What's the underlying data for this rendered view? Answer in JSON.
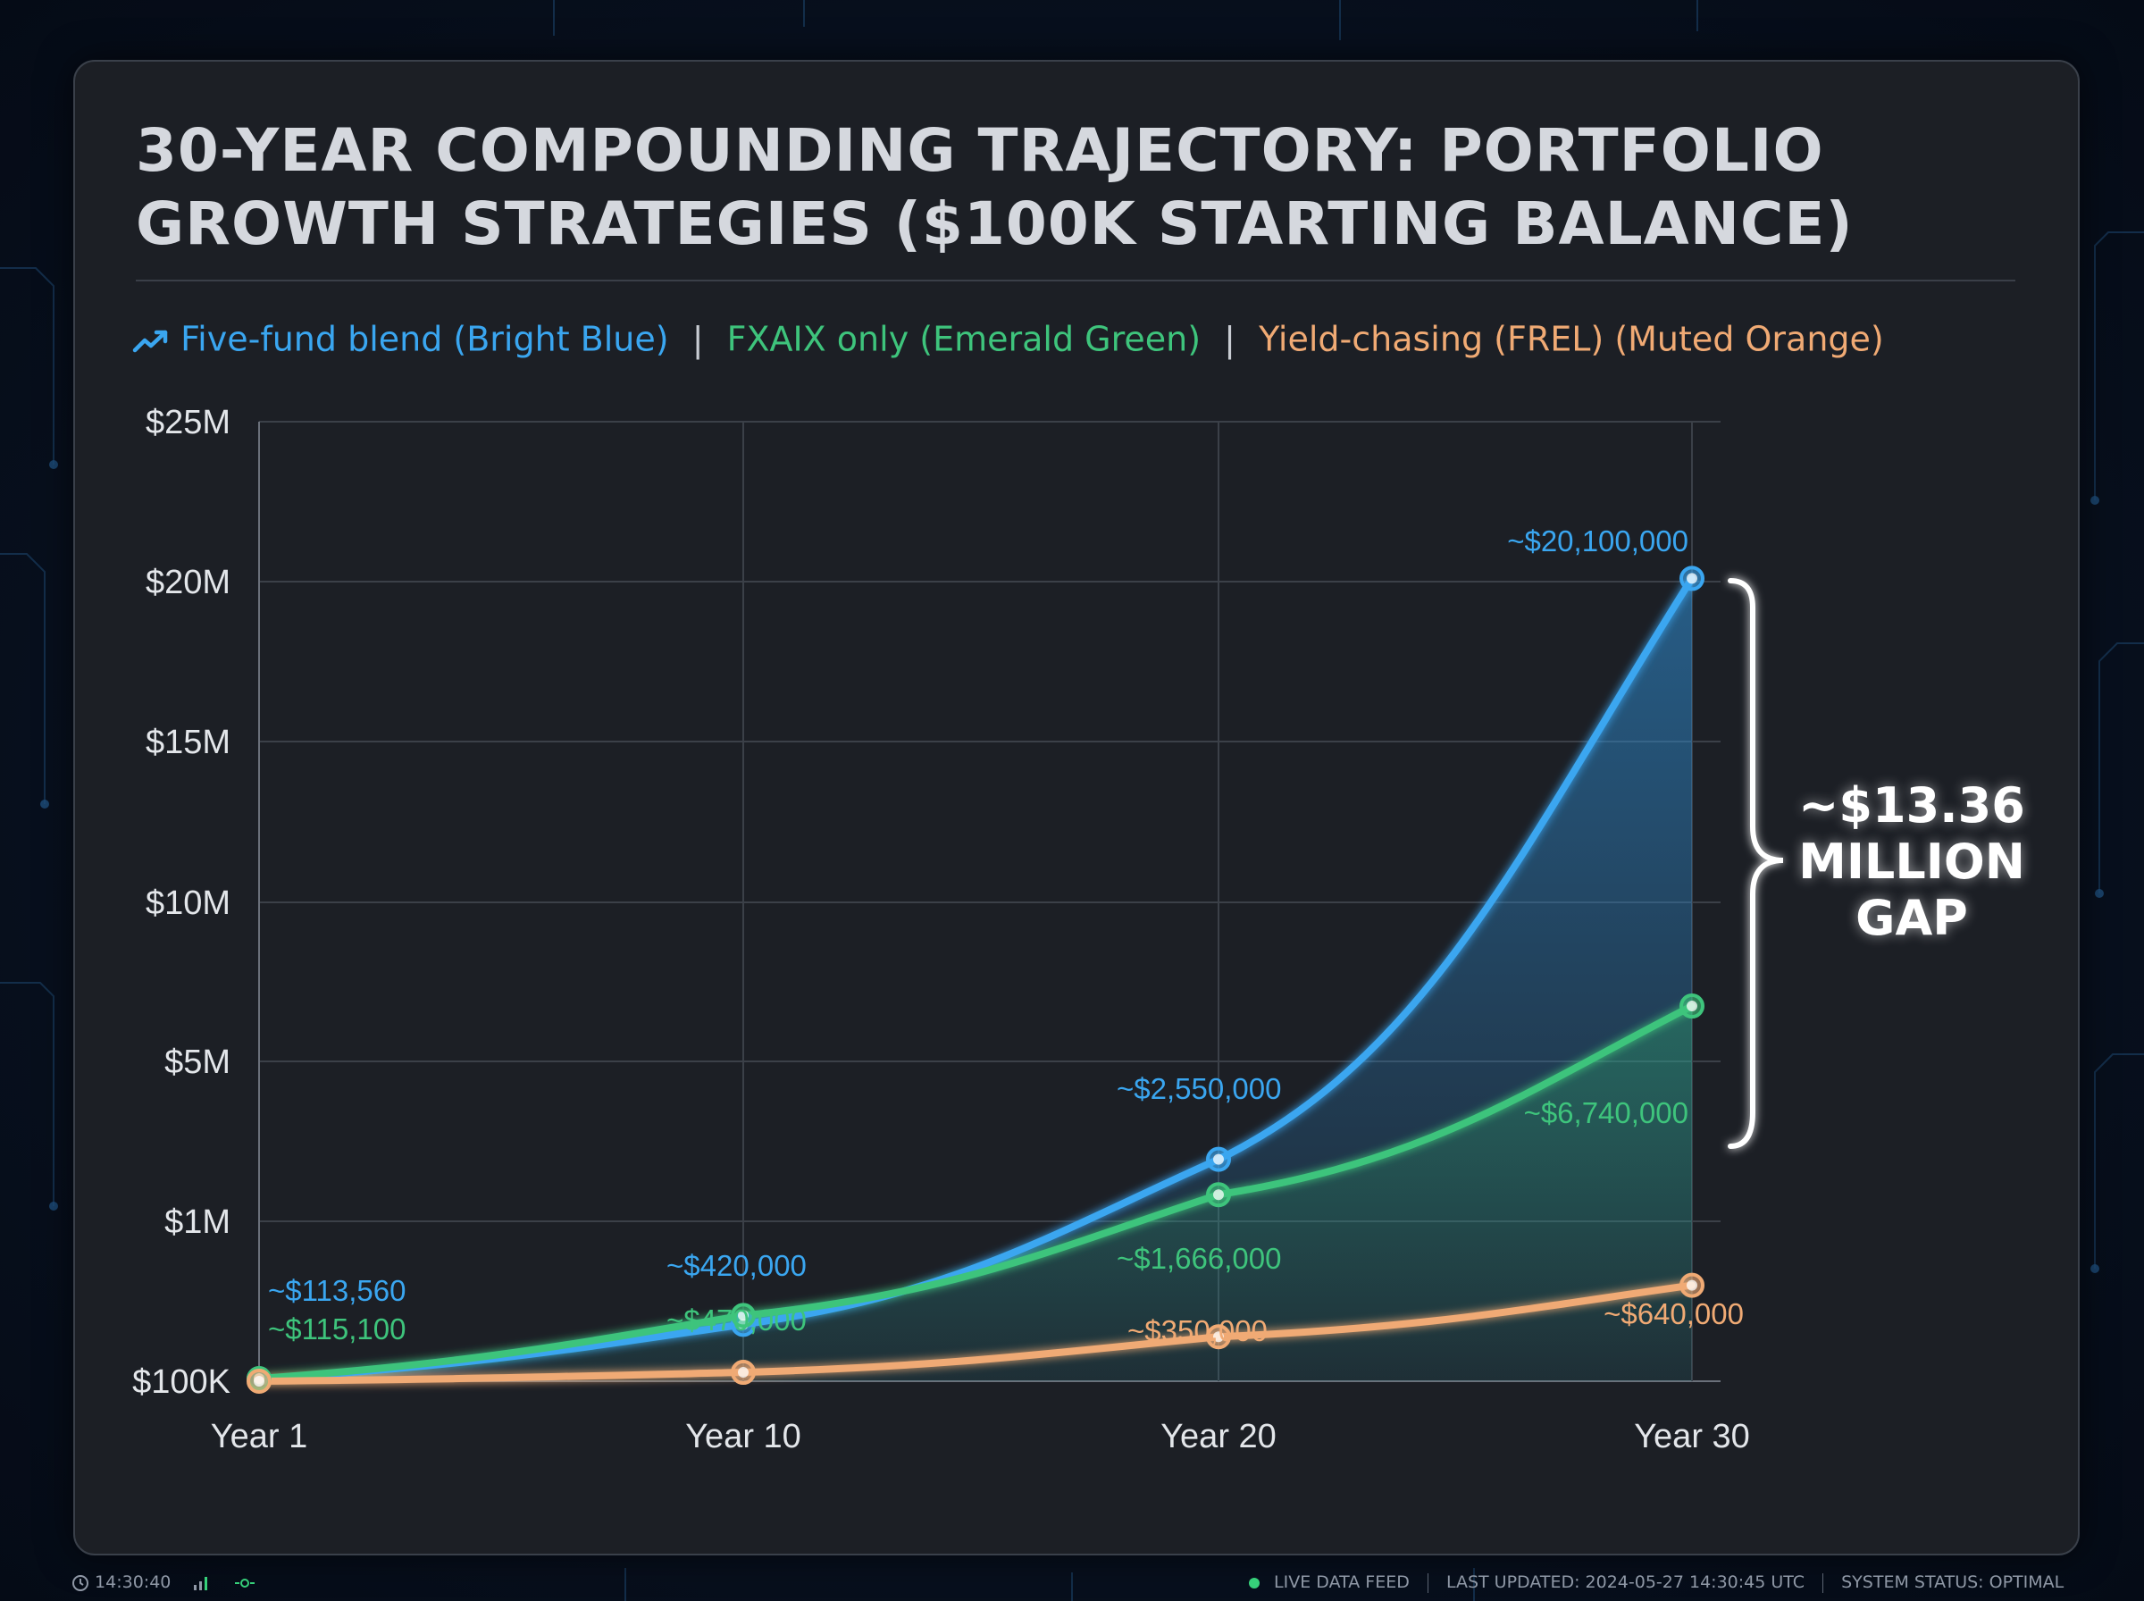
{
  "title": "30-YEAR COMPOUNDING TRAJECTORY: PORTFOLIO GROWTH STRATEGIES ($100K STARTING BALANCE)",
  "legend": {
    "five_fund": "Five-fund blend (Bright Blue)",
    "fxaix": "FXAIX only (Emerald Green)",
    "frel": "Yield-chasing (FREL) (Muted Orange)",
    "separator": "|",
    "icon": "trend-up-icon"
  },
  "colors": {
    "blue": "#3aa6f0",
    "green": "#3ec47c",
    "orange": "#f0aa74",
    "gap_annotation": "#ffffff"
  },
  "gap_annotation": "~$13.36 MILLION GAP",
  "status_bar": {
    "time": "14:30:40",
    "live_feed": "LIVE DATA FEED",
    "last_updated": "LAST UPDATED: 2024-05-27 14:30:45 UTC",
    "system_status": "SYSTEM STATUS: OPTIMAL"
  },
  "chart_data": {
    "type": "line",
    "title": "30-YEAR COMPOUNDING TRAJECTORY: PORTFOLIO GROWTH STRATEGIES ($100K STARTING BALANCE)",
    "xlabel": "",
    "ylabel": "",
    "x": [
      "Year 1",
      "Year 10",
      "Year 20",
      "Year 30"
    ],
    "y_ticks": [
      "$100K",
      "$1M",
      "$5M",
      "$10M",
      "$15M",
      "$20M",
      "$25M"
    ],
    "y_scale": "nonlinear (ticks at $100K, $1M, $5M, $10M, $15M, $20M, $25M)",
    "grid": true,
    "legend_position": "top-left",
    "series": [
      {
        "name": "Five-fund blend (Bright Blue)",
        "color": "#3aa6f0",
        "values": [
          113560,
          420000,
          2550000,
          20100000
        ],
        "labels": [
          "~$113,560",
          "~$420,000",
          "~$2,550,000",
          "~$20,100,000"
        ]
      },
      {
        "name": "FXAIX only (Emerald Green)",
        "color": "#3ec47c",
        "values": [
          115100,
          470000,
          1666000,
          6740000
        ],
        "labels": [
          "~$115,100",
          "~$470,000",
          "~$1,666,000",
          "~$6,740,000"
        ]
      },
      {
        "name": "Yield-chasing (FREL) (Muted Orange)",
        "color": "#f0aa74",
        "values": [
          100000,
          150000,
          350000,
          640000
        ],
        "labels": [
          "",
          "",
          "~$350,000",
          "~$640,000"
        ]
      }
    ]
  }
}
